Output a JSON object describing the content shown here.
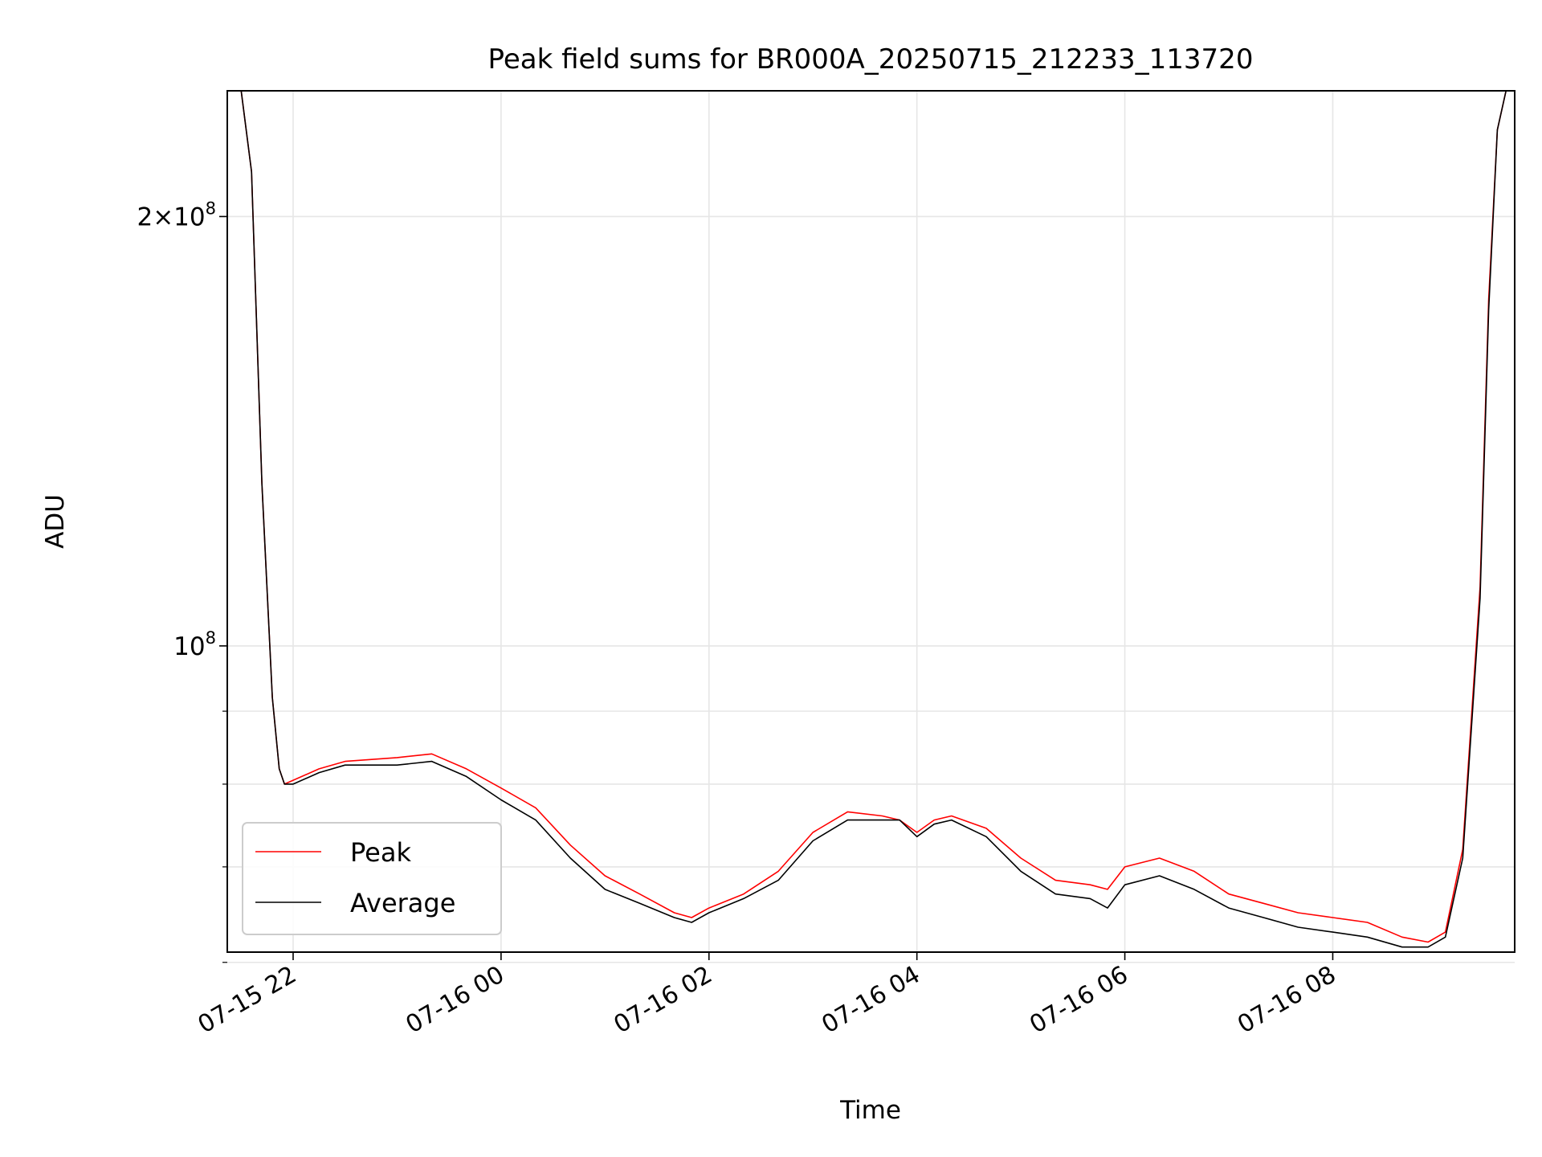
{
  "chart_data": {
    "type": "line",
    "title": "Peak field sums for BR000A_20250715_212233_113720",
    "xlabel": "Time",
    "ylabel": "ADU",
    "yscale": "log",
    "grid": true,
    "legend_position": "lower-left",
    "xlim": [
      "2025-07-15 21:22",
      "2025-07-16 09:45"
    ],
    "ylim": [
      61000000,
      245000000
    ],
    "x_ticks": [
      {
        "value": "2025-07-15 22:00",
        "label": "07-15 22"
      },
      {
        "value": "2025-07-16 00:00",
        "label": "07-16 00"
      },
      {
        "value": "2025-07-16 02:00",
        "label": "07-16 02"
      },
      {
        "value": "2025-07-16 04:00",
        "label": "07-16 04"
      },
      {
        "value": "2025-07-16 06:00",
        "label": "07-16 06"
      },
      {
        "value": "2025-07-16 08:00",
        "label": "07-16 08"
      }
    ],
    "y_major_ticks": [
      {
        "value": 100000000,
        "label": "10",
        "exponent": "8"
      },
      {
        "value": 200000000,
        "label": "2×10",
        "exponent": "8"
      }
    ],
    "y_minor_ticks": [
      60000000,
      70000000,
      80000000,
      90000000
    ],
    "series": [
      {
        "name": "Peak",
        "color": "#ff0000",
        "x": [
          "2025-07-15 21:22",
          "2025-07-15 21:30",
          "2025-07-15 21:36",
          "2025-07-15 21:42",
          "2025-07-15 21:48",
          "2025-07-15 21:52",
          "2025-07-15 21:55",
          "2025-07-15 22:00",
          "2025-07-15 22:15",
          "2025-07-15 22:30",
          "2025-07-15 23:00",
          "2025-07-15 23:20",
          "2025-07-15 23:40",
          "2025-07-16 00:00",
          "2025-07-16 00:20",
          "2025-07-16 00:40",
          "2025-07-16 01:00",
          "2025-07-16 01:20",
          "2025-07-16 01:40",
          "2025-07-16 01:50",
          "2025-07-16 02:00",
          "2025-07-16 02:20",
          "2025-07-16 02:40",
          "2025-07-16 03:00",
          "2025-07-16 03:20",
          "2025-07-16 03:40",
          "2025-07-16 03:50",
          "2025-07-16 04:00",
          "2025-07-16 04:10",
          "2025-07-16 04:20",
          "2025-07-16 04:40",
          "2025-07-16 05:00",
          "2025-07-16 05:20",
          "2025-07-16 05:40",
          "2025-07-16 05:50",
          "2025-07-16 06:00",
          "2025-07-16 06:20",
          "2025-07-16 06:40",
          "2025-07-16 07:00",
          "2025-07-16 07:20",
          "2025-07-16 07:40",
          "2025-07-16 08:00",
          "2025-07-16 08:20",
          "2025-07-16 08:40",
          "2025-07-16 08:55",
          "2025-07-16 09:05",
          "2025-07-16 09:15",
          "2025-07-16 09:25",
          "2025-07-16 09:30",
          "2025-07-16 09:35",
          "2025-07-16 09:40",
          "2025-07-16 09:45"
        ],
        "y": [
          245000000,
          245000000,
          215000000,
          130000000,
          92000000,
          82000000,
          80000000,
          80500000,
          82000000,
          83000000,
          83500000,
          84000000,
          82000000,
          79500000,
          77000000,
          72500000,
          69000000,
          67000000,
          65000000,
          64500000,
          65500000,
          67000000,
          69500000,
          74000000,
          76500000,
          76000000,
          75500000,
          74000000,
          75500000,
          76000000,
          74500000,
          71000000,
          68500000,
          68000000,
          67500000,
          70000000,
          71000000,
          69500000,
          67000000,
          66000000,
          65000000,
          64500000,
          64000000,
          62500000,
          62000000,
          63000000,
          72000000,
          110000000,
          175000000,
          230000000,
          245000000,
          245000000
        ]
      },
      {
        "name": "Average",
        "color": "#000000",
        "x": [
          "2025-07-15 21:22",
          "2025-07-15 21:30",
          "2025-07-15 21:36",
          "2025-07-15 21:42",
          "2025-07-15 21:48",
          "2025-07-15 21:52",
          "2025-07-15 21:55",
          "2025-07-15 22:00",
          "2025-07-15 22:15",
          "2025-07-15 22:30",
          "2025-07-15 23:00",
          "2025-07-15 23:20",
          "2025-07-15 23:40",
          "2025-07-16 00:00",
          "2025-07-16 00:20",
          "2025-07-16 00:40",
          "2025-07-16 01:00",
          "2025-07-16 01:20",
          "2025-07-16 01:40",
          "2025-07-16 01:50",
          "2025-07-16 02:00",
          "2025-07-16 02:20",
          "2025-07-16 02:40",
          "2025-07-16 03:00",
          "2025-07-16 03:20",
          "2025-07-16 03:40",
          "2025-07-16 03:50",
          "2025-07-16 04:00",
          "2025-07-16 04:10",
          "2025-07-16 04:20",
          "2025-07-16 04:40",
          "2025-07-16 05:00",
          "2025-07-16 05:20",
          "2025-07-16 05:40",
          "2025-07-16 05:50",
          "2025-07-16 06:00",
          "2025-07-16 06:20",
          "2025-07-16 06:40",
          "2025-07-16 07:00",
          "2025-07-16 07:20",
          "2025-07-16 07:40",
          "2025-07-16 08:00",
          "2025-07-16 08:20",
          "2025-07-16 08:40",
          "2025-07-16 08:55",
          "2025-07-16 09:05",
          "2025-07-16 09:15",
          "2025-07-16 09:25",
          "2025-07-16 09:30",
          "2025-07-16 09:35",
          "2025-07-16 09:40",
          "2025-07-16 09:45"
        ],
        "y": [
          245000000,
          245000000,
          215000000,
          130000000,
          92000000,
          82000000,
          80000000,
          80000000,
          81500000,
          82500000,
          82500000,
          83000000,
          81000000,
          78000000,
          75500000,
          71000000,
          67500000,
          66000000,
          64500000,
          64000000,
          65000000,
          66500000,
          68500000,
          73000000,
          75500000,
          75500000,
          75500000,
          73500000,
          75000000,
          75500000,
          73500000,
          69500000,
          67000000,
          66500000,
          65500000,
          68000000,
          69000000,
          67500000,
          65500000,
          64500000,
          63500000,
          63000000,
          62500000,
          61500000,
          61500000,
          62500000,
          71000000,
          108000000,
          172000000,
          230000000,
          245000000,
          245000000
        ]
      }
    ]
  }
}
